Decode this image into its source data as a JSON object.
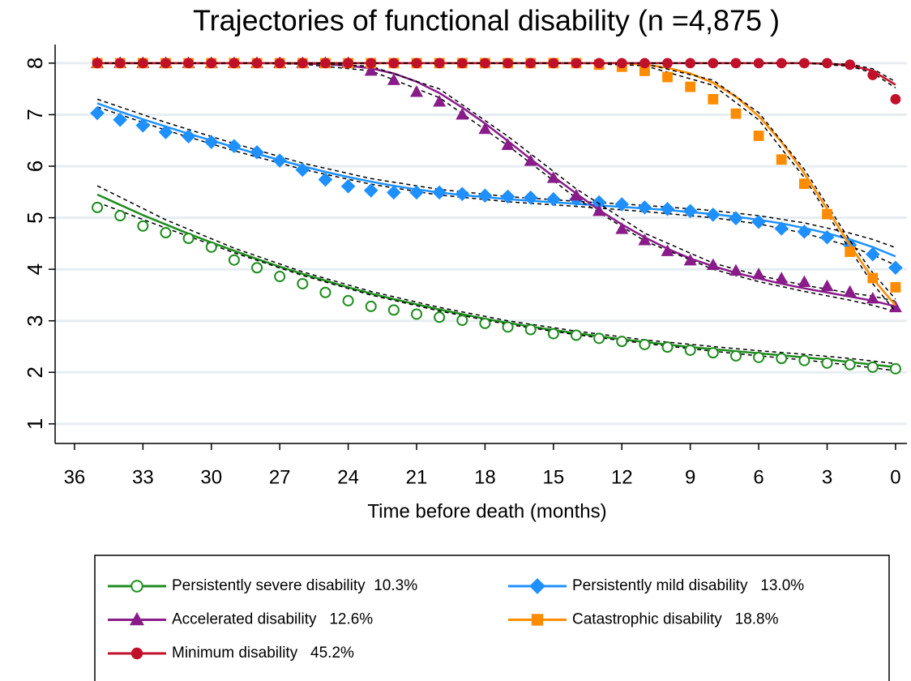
{
  "chart_data": {
    "type": "line",
    "title": "Trajectories of functional disability (n =4,875 )",
    "x_label": "Time before death (months)",
    "x": [
      35,
      34,
      33,
      32,
      31,
      30,
      29,
      28,
      27,
      26,
      25,
      24,
      23,
      22,
      21,
      20,
      19,
      18,
      17,
      16,
      15,
      14,
      13,
      12,
      11,
      10,
      9,
      8,
      7,
      6,
      5,
      4,
      3,
      2,
      1,
      0
    ],
    "ci_x": [
      35,
      32,
      29,
      26,
      23,
      20,
      17,
      14,
      11,
      8,
      6,
      4,
      2,
      1,
      0
    ],
    "xlim": [
      36.85,
      -0.5
    ],
    "xticks": [
      36,
      33,
      30,
      27,
      24,
      21,
      18,
      15,
      12,
      9,
      6,
      3,
      0
    ],
    "ylim": [
      0.62,
      8.36
    ],
    "yticks": [
      1,
      2,
      3,
      4,
      5,
      6,
      7,
      8
    ],
    "grid": true,
    "series": [
      {
        "name": "Persistently severe disability  10.3%",
        "color": "#1e8c1e",
        "marker": "open-circle",
        "values": [
          5.2,
          5.04,
          4.84,
          4.71,
          4.6,
          4.43,
          4.18,
          4.03,
          3.86,
          3.72,
          3.55,
          3.39,
          3.28,
          3.21,
          3.13,
          3.07,
          3.01,
          2.95,
          2.88,
          2.83,
          2.75,
          2.72,
          2.66,
          2.6,
          2.54,
          2.49,
          2.43,
          2.38,
          2.32,
          2.29,
          2.27,
          2.23,
          2.18,
          2.15,
          2.1,
          2.07
        ],
        "fit": [
          5.45,
          5.25,
          5.05,
          4.87,
          4.69,
          4.52,
          4.36,
          4.2,
          4.05,
          3.91,
          3.78,
          3.65,
          3.53,
          3.42,
          3.32,
          3.22,
          3.13,
          3.04,
          2.96,
          2.89,
          2.82,
          2.76,
          2.7,
          2.64,
          2.59,
          2.54,
          2.49,
          2.45,
          2.41,
          2.37,
          2.33,
          2.29,
          2.25,
          2.2,
          2.15,
          2.1
        ],
        "ci_lower": [
          5.3,
          4.8,
          4.32,
          3.88,
          3.5,
          3.19,
          2.93,
          2.73,
          2.56,
          2.41,
          2.32,
          2.24,
          2.14,
          2.09,
          2.03
        ],
        "ci_upper": [
          5.62,
          4.96,
          4.41,
          3.95,
          3.57,
          3.26,
          3.0,
          2.8,
          2.63,
          2.5,
          2.42,
          2.35,
          2.27,
          2.22,
          2.17
        ]
      },
      {
        "name": "Persistently mild disability   13.0%",
        "color": "#1e90ff",
        "marker": "diamond",
        "values": [
          7.03,
          6.9,
          6.79,
          6.66,
          6.58,
          6.47,
          6.39,
          6.27,
          6.11,
          5.93,
          5.74,
          5.61,
          5.53,
          5.49,
          5.49,
          5.49,
          5.46,
          5.43,
          5.41,
          5.39,
          5.36,
          5.36,
          5.3,
          5.26,
          5.2,
          5.17,
          5.13,
          5.06,
          4.99,
          4.92,
          4.79,
          4.73,
          4.62,
          4.47,
          4.29,
          4.03
        ],
        "fit": [
          7.22,
          7.06,
          6.91,
          6.77,
          6.63,
          6.5,
          6.37,
          6.24,
          6.12,
          6.0,
          5.89,
          5.79,
          5.7,
          5.62,
          5.55,
          5.49,
          5.44,
          5.4,
          5.36,
          5.33,
          5.3,
          5.27,
          5.24,
          5.21,
          5.18,
          5.15,
          5.11,
          5.07,
          5.02,
          4.96,
          4.89,
          4.8,
          4.7,
          4.58,
          4.43,
          4.25
        ],
        "ci_lower": [
          7.15,
          6.7,
          6.3,
          5.94,
          5.65,
          5.44,
          5.31,
          5.22,
          5.12,
          5.0,
          4.88,
          4.7,
          4.45,
          4.28,
          4.08
        ],
        "ci_upper": [
          7.3,
          6.85,
          6.44,
          6.06,
          5.76,
          5.55,
          5.41,
          5.32,
          5.24,
          5.14,
          5.04,
          4.9,
          4.7,
          4.58,
          4.42
        ]
      },
      {
        "name": "Accelerated disability   12.6%",
        "color": "#891c89",
        "marker": "triangle",
        "values": [
          8,
          8,
          8,
          8,
          8,
          8,
          8,
          8,
          8,
          8,
          8,
          8,
          7.85,
          7.67,
          7.44,
          7.25,
          7.0,
          6.72,
          6.41,
          6.1,
          5.77,
          5.43,
          5.13,
          4.78,
          4.56,
          4.35,
          4.17,
          4.08,
          3.97,
          3.9,
          3.82,
          3.75,
          3.67,
          3.56,
          3.43,
          3.26
        ],
        "fit": [
          8,
          8,
          8,
          8,
          8,
          8,
          8,
          8,
          8,
          7.99,
          7.98,
          7.95,
          7.9,
          7.8,
          7.64,
          7.42,
          7.14,
          6.83,
          6.49,
          6.14,
          5.8,
          5.47,
          5.15,
          4.87,
          4.62,
          4.4,
          4.21,
          4.06,
          3.93,
          3.82,
          3.72,
          3.63,
          3.55,
          3.47,
          3.39,
          3.28
        ],
        "ci_lower": [
          8,
          8,
          8,
          7.98,
          7.85,
          7.33,
          6.4,
          5.38,
          4.55,
          4.0,
          3.76,
          3.57,
          3.4,
          3.3,
          3.18
        ],
        "ci_upper": [
          8,
          8,
          8,
          8,
          7.94,
          7.5,
          6.58,
          5.56,
          4.7,
          4.12,
          3.88,
          3.69,
          3.54,
          3.48,
          3.38
        ]
      },
      {
        "name": "Catastrophic disability   18.8%",
        "color": "#ff8c00",
        "marker": "square",
        "values": [
          8,
          8,
          8,
          8,
          8,
          8,
          8,
          8,
          8,
          8,
          8,
          8,
          8,
          8,
          8,
          8,
          8,
          8,
          8,
          8,
          8,
          8,
          7.97,
          7.93,
          7.85,
          7.73,
          7.54,
          7.3,
          7.02,
          6.59,
          6.13,
          5.66,
          5.07,
          4.34,
          3.83,
          3.65
        ],
        "fit": [
          8,
          8,
          8,
          8,
          8,
          8,
          8,
          8,
          8,
          8,
          8,
          8,
          8,
          8,
          8,
          8,
          8,
          8,
          8,
          8,
          8,
          8,
          8,
          8,
          7.97,
          7.91,
          7.8,
          7.62,
          7.35,
          6.97,
          6.47,
          5.86,
          5.17,
          4.47,
          3.82,
          3.3
        ],
        "ci_lower": [
          8,
          8,
          8,
          8,
          8,
          8,
          8,
          8,
          7.95,
          7.57,
          6.9,
          5.78,
          4.38,
          3.72,
          3.18
        ],
        "ci_upper": [
          8,
          8,
          8,
          8,
          8,
          8,
          8,
          8,
          7.99,
          7.67,
          7.04,
          5.94,
          4.56,
          3.93,
          3.42
        ]
      },
      {
        "name": "Minimum disability   45.2%",
        "color": "#c0102a",
        "marker": "circle",
        "values": [
          8,
          8,
          8,
          8,
          8,
          8,
          8,
          8,
          8,
          8,
          8,
          8,
          8,
          8,
          8,
          8,
          8,
          8,
          8,
          8,
          8,
          8,
          8,
          8,
          8,
          8,
          8,
          8,
          8,
          8,
          8,
          8,
          8,
          7.97,
          7.77,
          7.3
        ],
        "fit": [
          8,
          8,
          8,
          8,
          8,
          8,
          8,
          8,
          8,
          8,
          8,
          8,
          8,
          8,
          8,
          8,
          8,
          8,
          8,
          8,
          8,
          8,
          8,
          8,
          8,
          8,
          8,
          8,
          8,
          8,
          8,
          8,
          7.99,
          7.96,
          7.85,
          7.58
        ],
        "ci_lower": [
          8,
          8,
          8,
          8,
          8,
          8,
          8,
          8,
          8,
          8,
          8,
          8,
          7.94,
          7.81,
          7.52
        ],
        "ci_upper": [
          8,
          8,
          8,
          8,
          8,
          8,
          8,
          8,
          8,
          8,
          8,
          8,
          7.98,
          7.89,
          7.64
        ]
      }
    ]
  }
}
